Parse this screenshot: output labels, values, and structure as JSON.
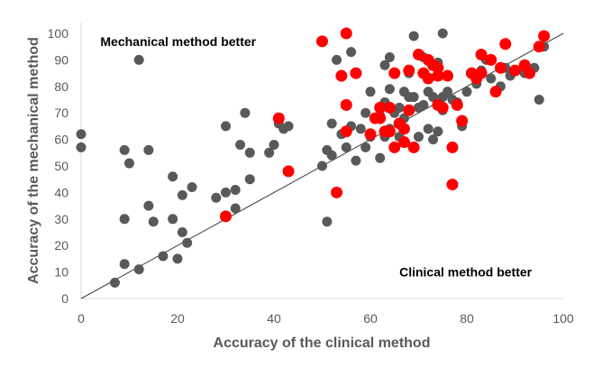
{
  "chart_data": {
    "type": "scatter",
    "xlabel": "Accuracy of the clinical method",
    "ylabel": "Accuracy of the mechanical method",
    "xlim": [
      0,
      100
    ],
    "ylim": [
      0,
      100
    ],
    "x_ticks": [
      "0",
      "20",
      "40",
      "60",
      "80",
      "100"
    ],
    "y_ticks": [
      "0",
      "10",
      "20",
      "30",
      "40",
      "50",
      "60",
      "70",
      "80",
      "90",
      "100"
    ],
    "grid": false,
    "legend": "none",
    "annotations": [
      {
        "text": "Mechanical method better",
        "at": [
          4,
          97
        ]
      },
      {
        "text": "Clinical method better",
        "at": [
          66,
          10
        ]
      }
    ],
    "reference_line": {
      "from": [
        0,
        0
      ],
      "to": [
        100,
        100
      ],
      "color": "#404040"
    },
    "series": [
      {
        "color": "#595959",
        "points": [
          [
            0,
            62
          ],
          [
            0,
            57
          ],
          [
            7,
            6
          ],
          [
            9,
            56
          ],
          [
            9,
            30
          ],
          [
            9,
            13
          ],
          [
            10,
            51
          ],
          [
            12,
            90
          ],
          [
            12,
            11
          ],
          [
            14,
            56
          ],
          [
            14,
            35
          ],
          [
            15,
            29
          ],
          [
            17,
            16
          ],
          [
            19,
            46
          ],
          [
            19,
            30
          ],
          [
            20,
            15
          ],
          [
            21,
            39
          ],
          [
            21,
            25
          ],
          [
            22,
            21
          ],
          [
            23,
            42
          ],
          [
            28,
            38
          ],
          [
            30,
            65
          ],
          [
            30,
            40
          ],
          [
            32,
            41
          ],
          [
            32,
            34
          ],
          [
            33,
            58
          ],
          [
            34,
            70
          ],
          [
            35,
            55
          ],
          [
            35,
            45
          ],
          [
            39,
            55
          ],
          [
            40,
            58
          ],
          [
            41,
            66
          ],
          [
            42,
            64
          ],
          [
            43,
            65
          ],
          [
            50,
            50
          ],
          [
            51,
            56
          ],
          [
            51,
            29
          ],
          [
            52,
            66
          ],
          [
            52,
            54
          ],
          [
            53,
            90
          ],
          [
            54,
            62
          ],
          [
            55,
            57
          ],
          [
            56,
            93
          ],
          [
            56,
            65
          ],
          [
            57,
            52
          ],
          [
            58,
            64
          ],
          [
            59,
            57
          ],
          [
            59,
            70
          ],
          [
            60,
            78
          ],
          [
            60,
            61
          ],
          [
            61,
            68
          ],
          [
            62,
            69
          ],
          [
            62,
            53
          ],
          [
            63,
            88
          ],
          [
            63,
            74
          ],
          [
            63,
            61
          ],
          [
            64,
            91
          ],
          [
            64,
            79
          ],
          [
            64,
            64
          ],
          [
            65,
            70
          ],
          [
            66,
            72
          ],
          [
            66,
            61
          ],
          [
            67,
            78
          ],
          [
            67,
            68
          ],
          [
            68,
            76
          ],
          [
            68,
            85
          ],
          [
            69,
            99
          ],
          [
            69,
            76
          ],
          [
            70,
            72
          ],
          [
            70,
            61
          ],
          [
            71,
            73
          ],
          [
            71,
            91
          ],
          [
            72,
            78
          ],
          [
            72,
            64
          ],
          [
            73,
            76
          ],
          [
            73,
            60
          ],
          [
            74,
            89
          ],
          [
            74,
            63
          ],
          [
            75,
            100
          ],
          [
            75,
            76
          ],
          [
            75,
            71
          ],
          [
            76,
            78
          ],
          [
            77,
            75
          ],
          [
            78,
            74
          ],
          [
            79,
            65
          ],
          [
            80,
            78
          ],
          [
            82,
            81
          ],
          [
            83,
            86
          ],
          [
            84,
            90
          ],
          [
            85,
            83
          ],
          [
            87,
            80
          ],
          [
            88,
            87
          ],
          [
            89,
            84
          ],
          [
            92,
            85
          ],
          [
            94,
            87
          ],
          [
            95,
            75
          ],
          [
            96,
            95
          ]
        ]
      },
      {
        "color": "#ff0000",
        "points": [
          [
            30,
            31
          ],
          [
            41,
            68
          ],
          [
            43,
            48
          ],
          [
            50,
            97
          ],
          [
            53,
            40
          ],
          [
            54,
            84
          ],
          [
            55,
            73
          ],
          [
            55,
            63
          ],
          [
            55,
            100
          ],
          [
            57,
            85
          ],
          [
            60,
            62
          ],
          [
            61,
            68
          ],
          [
            62,
            72
          ],
          [
            62,
            68
          ],
          [
            63,
            63
          ],
          [
            64,
            72
          ],
          [
            64,
            63
          ],
          [
            65,
            85
          ],
          [
            65,
            57
          ],
          [
            66,
            66
          ],
          [
            67,
            64
          ],
          [
            67,
            59
          ],
          [
            68,
            71
          ],
          [
            68,
            86
          ],
          [
            69,
            57
          ],
          [
            70,
            92
          ],
          [
            71,
            85
          ],
          [
            72,
            90
          ],
          [
            72,
            83
          ],
          [
            73,
            88
          ],
          [
            74,
            87
          ],
          [
            74,
            84
          ],
          [
            74,
            73
          ],
          [
            75,
            72
          ],
          [
            76,
            84
          ],
          [
            77,
            43
          ],
          [
            77,
            57
          ],
          [
            78,
            73
          ],
          [
            79,
            67
          ],
          [
            81,
            85
          ],
          [
            82,
            83
          ],
          [
            83,
            92
          ],
          [
            83,
            85
          ],
          [
            85,
            90
          ],
          [
            86,
            78
          ],
          [
            87,
            87
          ],
          [
            88,
            96
          ],
          [
            90,
            86
          ],
          [
            92,
            88
          ],
          [
            93,
            85
          ],
          [
            95,
            95
          ],
          [
            96,
            99
          ]
        ]
      }
    ]
  }
}
